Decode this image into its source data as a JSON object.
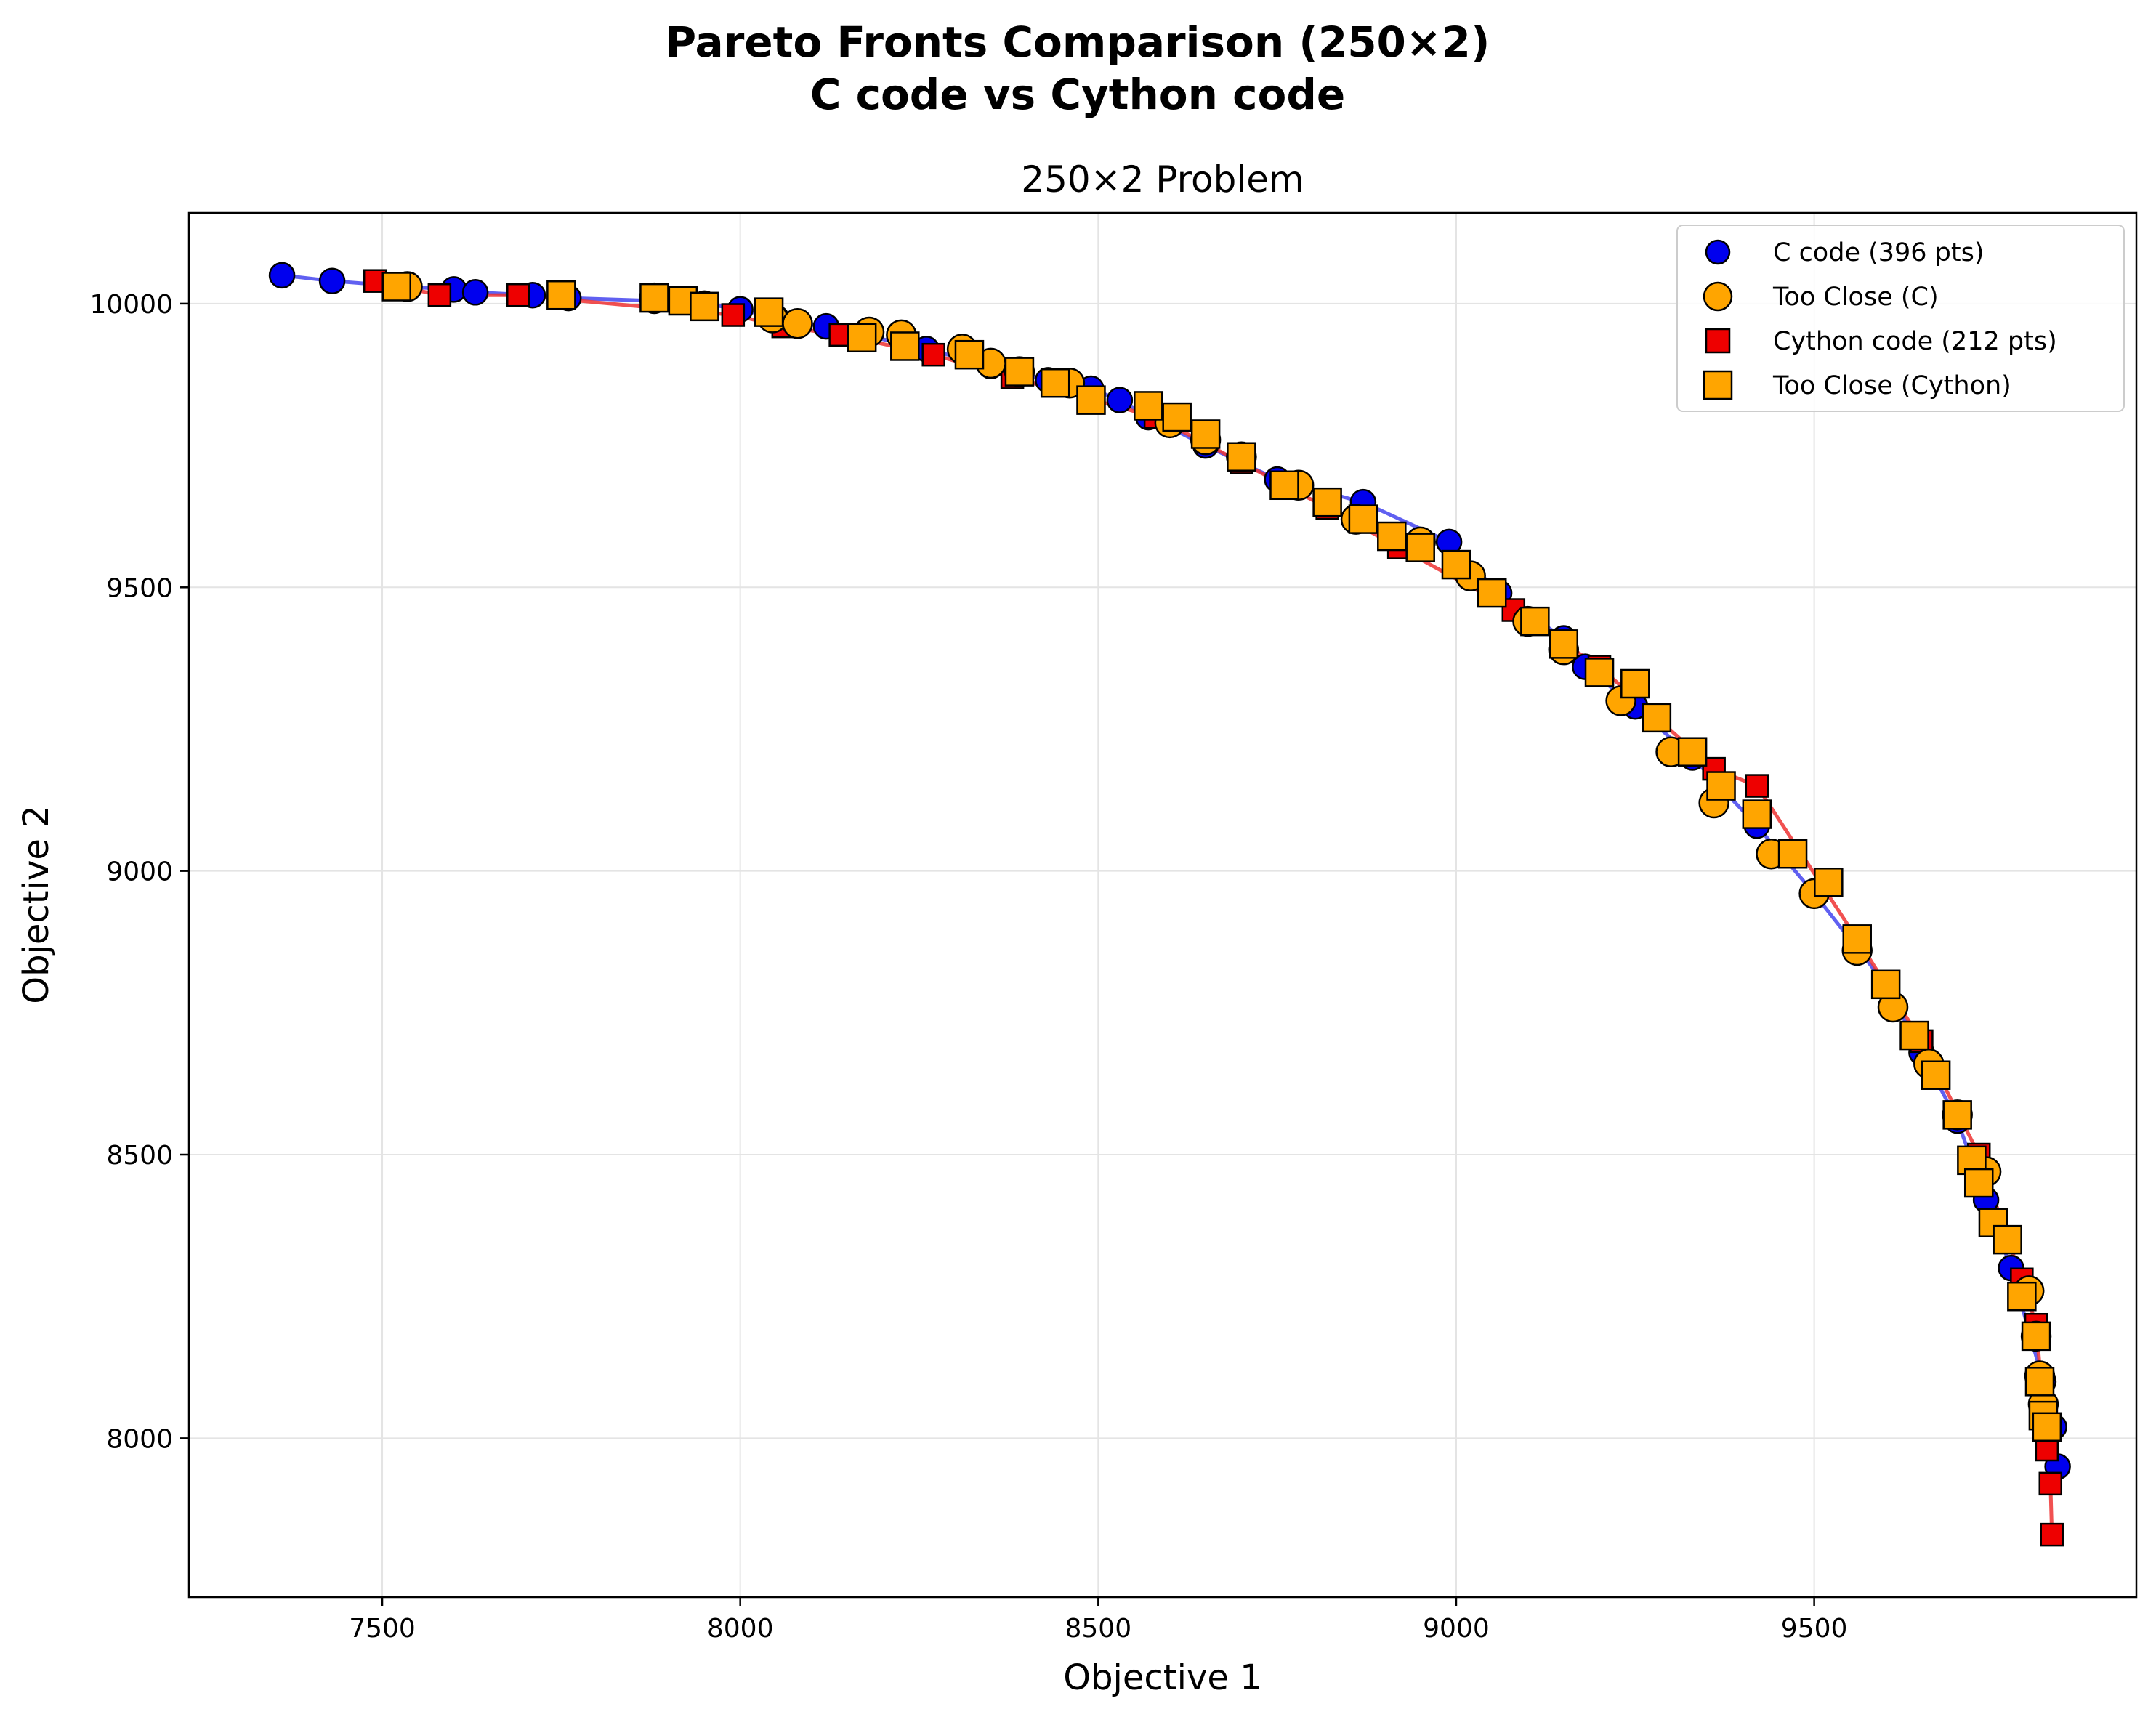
{
  "figure": {
    "suptitle_line1": "Pareto Fronts Comparison (250×2)",
    "suptitle_line2": "C code vs Cython code"
  },
  "chart_data": {
    "type": "scatter",
    "title": "250×2 Problem",
    "xlabel": "Objective 1",
    "ylabel": "Objective 2",
    "xlim": [
      7230,
      9950
    ],
    "ylim": [
      7720,
      10160
    ],
    "xticks": [
      7500,
      8000,
      8500,
      9000,
      9500
    ],
    "yticks": [
      8000,
      8500,
      9000,
      9500,
      10000
    ],
    "grid": true,
    "legend_position": "upper right",
    "colors": {
      "c_code": "#0000ee",
      "c_line": "#4444ee",
      "cython_code": "#ee0000",
      "cython_line": "#ee3333",
      "too_close": "#ffa500"
    },
    "series": [
      {
        "name": "C code (396 pts)",
        "marker": "circle",
        "color": "#0000ee",
        "x": [
          7360,
          7430,
          7530,
          7600,
          7630,
          7710,
          7760,
          7880,
          7950,
          8000,
          8050,
          8120,
          8260,
          8350,
          8430,
          8490,
          8530,
          8570,
          8650,
          8750,
          8870,
          8990,
          9060,
          9150,
          9180,
          9250,
          9330,
          9420,
          9500,
          9600,
          9650,
          9700,
          9740,
          9775,
          9820,
          9835,
          9840
        ],
        "y": [
          10050,
          10040,
          10030,
          10025,
          10020,
          10015,
          10010,
          10005,
          10000,
          9990,
          9975,
          9960,
          9920,
          9890,
          9865,
          9850,
          9830,
          9800,
          9750,
          9690,
          9650,
          9580,
          9490,
          9410,
          9360,
          9290,
          9200,
          9080,
          8960,
          8800,
          8680,
          8560,
          8420,
          8300,
          8100,
          8020,
          7950
        ]
      },
      {
        "name": "Too Close (C)",
        "marker": "circle",
        "color": "#ffa500",
        "x": [
          7535,
          7880,
          8045,
          8080,
          8180,
          8225,
          8310,
          8350,
          8390,
          8460,
          8600,
          8650,
          8700,
          8780,
          8860,
          8950,
          9020,
          9100,
          9150,
          9230,
          9300,
          9360,
          9440,
          9500,
          9560,
          9610,
          9660,
          9700,
          9740,
          9800,
          9810,
          9815,
          9820
        ],
        "y": [
          10030,
          10010,
          9975,
          9965,
          9950,
          9945,
          9920,
          9895,
          9880,
          9860,
          9790,
          9760,
          9730,
          9680,
          9620,
          9580,
          9520,
          9440,
          9390,
          9300,
          9210,
          9120,
          9030,
          8960,
          8860,
          8760,
          8660,
          8570,
          8470,
          8260,
          8180,
          8110,
          8060
        ]
      },
      {
        "name": "Cython code (212 pts)",
        "marker": "square",
        "color": "#ee0000",
        "x": [
          7490,
          7580,
          7690,
          7990,
          8060,
          8140,
          8270,
          8380,
          8580,
          8700,
          8820,
          8920,
          9080,
          9200,
          9360,
          9420,
          9560,
          9650,
          9730,
          9790,
          9810,
          9825,
          9830,
          9832
        ],
        "y": [
          10040,
          10015,
          10015,
          9980,
          9960,
          9945,
          9910,
          9870,
          9800,
          9720,
          9640,
          9570,
          9460,
          9360,
          9180,
          9150,
          8880,
          8700,
          8500,
          8280,
          8200,
          7980,
          7920,
          7830
        ]
      },
      {
        "name": "Too Close (Cython)",
        "marker": "square",
        "color": "#ffa500",
        "x": [
          7520,
          7750,
          7880,
          7920,
          7950,
          8040,
          8170,
          8230,
          8320,
          8390,
          8440,
          8490,
          8570,
          8610,
          8650,
          8700,
          8760,
          8820,
          8870,
          8910,
          8950,
          9000,
          9050,
          9110,
          9150,
          9200,
          9250,
          9280,
          9330,
          9370,
          9420,
          9470,
          9520,
          9560,
          9600,
          9640,
          9670,
          9700,
          9720,
          9730,
          9750,
          9770,
          9790,
          9810,
          9815,
          9820,
          9825
        ],
        "y": [
          10030,
          10015,
          10010,
          10005,
          9995,
          9985,
          9940,
          9925,
          9910,
          9880,
          9860,
          9830,
          9820,
          9800,
          9770,
          9730,
          9680,
          9650,
          9620,
          9590,
          9570,
          9540,
          9490,
          9440,
          9400,
          9350,
          9330,
          9270,
          9210,
          9150,
          9100,
          9030,
          8980,
          8880,
          8800,
          8710,
          8640,
          8570,
          8490,
          8450,
          8380,
          8350,
          8250,
          8180,
          8100,
          8040,
          8020
        ]
      }
    ]
  }
}
